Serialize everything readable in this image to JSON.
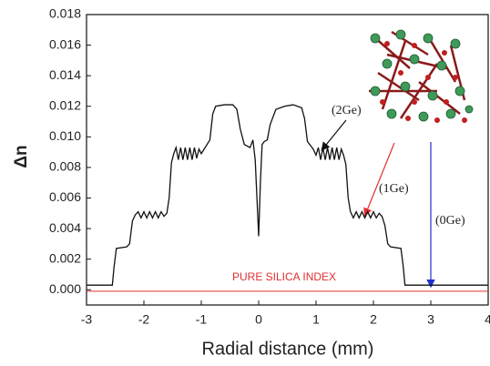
{
  "chart_data": {
    "type": "line",
    "y_label": "Δn",
    "x_label": "Radial distance (mm)",
    "xlim": [
      -3,
      4
    ],
    "ylim": [
      -0.001,
      0.018
    ],
    "xticks": [
      -3,
      -2,
      -1,
      0,
      1,
      2,
      3,
      4
    ],
    "yticks": [
      {
        "value": 0,
        "label": "0.000"
      },
      {
        "value": 0.002,
        "label": "0.002"
      },
      {
        "value": 0.004,
        "label": "0.004"
      },
      {
        "value": 0.006,
        "label": "0.006"
      },
      {
        "value": 0.008,
        "label": "0.008"
      },
      {
        "value": 0.01,
        "label": "0.010"
      },
      {
        "value": 0.012,
        "label": "0.012"
      },
      {
        "value": 0.014,
        "label": "0.014"
      },
      {
        "value": 0.016,
        "label": "0.016"
      },
      {
        "value": 0.018,
        "label": "0.018"
      }
    ],
    "color": "#111111",
    "x": [
      -3,
      -2.55,
      -2.52,
      -2.48,
      -2.3,
      -2.25,
      -2.2,
      -2.15,
      -2.1,
      -2.05,
      -2.0,
      -1.95,
      -1.9,
      -1.85,
      -1.8,
      -1.75,
      -1.7,
      -1.65,
      -1.6,
      -1.56,
      -1.52,
      -1.48,
      -1.44,
      -1.4,
      -1.36,
      -1.32,
      -1.28,
      -1.24,
      -1.2,
      -1.16,
      -1.12,
      -1.08,
      -1.04,
      -1.0,
      -0.95,
      -0.85,
      -0.8,
      -0.75,
      -0.6,
      -0.45,
      -0.38,
      -0.32,
      -0.25,
      -0.15,
      -0.1,
      -0.06,
      -0.03,
      0,
      0.03,
      0.06,
      0.1,
      0.15,
      0.2,
      0.3,
      0.45,
      0.6,
      0.75,
      0.8,
      0.85,
      0.95,
      1.0,
      1.04,
      1.08,
      1.12,
      1.16,
      1.2,
      1.24,
      1.28,
      1.32,
      1.36,
      1.4,
      1.44,
      1.48,
      1.52,
      1.56,
      1.6,
      1.65,
      1.7,
      1.75,
      1.8,
      1.85,
      1.9,
      1.95,
      2.0,
      2.05,
      2.1,
      2.15,
      2.2,
      2.25,
      2.3,
      2.48,
      2.52,
      2.55,
      4
    ],
    "values": [
      0.0003,
      0.0003,
      0.0015,
      0.0027,
      0.0028,
      0.003,
      0.0045,
      0.0049,
      0.0051,
      0.0047,
      0.0051,
      0.0047,
      0.0051,
      0.0047,
      0.0051,
      0.0047,
      0.0051,
      0.0048,
      0.005,
      0.006,
      0.0083,
      0.0089,
      0.0093,
      0.0085,
      0.0093,
      0.0085,
      0.0093,
      0.0085,
      0.0093,
      0.0085,
      0.0093,
      0.0086,
      0.0092,
      0.0089,
      0.0092,
      0.0098,
      0.0115,
      0.012,
      0.0121,
      0.0121,
      0.0118,
      0.0105,
      0.0095,
      0.0093,
      0.0098,
      0.0085,
      0.006,
      0.0035,
      0.007,
      0.0095,
      0.0097,
      0.0098,
      0.0108,
      0.0118,
      0.012,
      0.0121,
      0.0119,
      0.0112,
      0.0097,
      0.0092,
      0.0088,
      0.0093,
      0.0085,
      0.0093,
      0.0085,
      0.0093,
      0.0085,
      0.0093,
      0.0085,
      0.0093,
      0.0085,
      0.0092,
      0.0088,
      0.0082,
      0.006,
      0.0051,
      0.0047,
      0.0051,
      0.0047,
      0.0051,
      0.0047,
      0.0051,
      0.0047,
      0.0051,
      0.0047,
      0.005,
      0.0048,
      0.0042,
      0.003,
      0.0028,
      0.0027,
      0.0015,
      0.0003,
      0.0003
    ],
    "reference_line": {
      "value": -0.0001,
      "color": "#e03030",
      "label": "PURE SILICA INDEX"
    },
    "annotations": [
      "(2Ge)",
      "(1Ge)",
      "(0Ge)"
    ]
  }
}
